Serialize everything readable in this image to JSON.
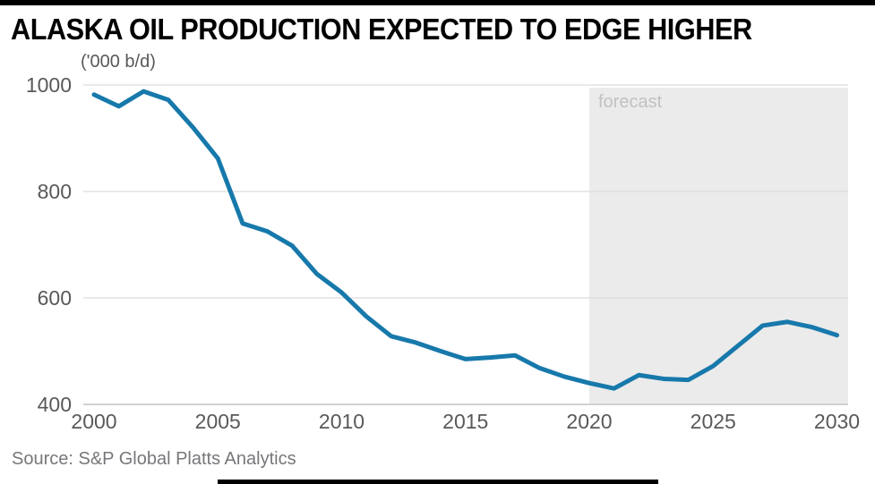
{
  "title": "ALASKA OIL PRODUCTION EXPECTED TO EDGE HIGHER",
  "source": "Source: S&P Global Platts Analytics",
  "colors": {
    "line": "#1779ab",
    "forecast_fill": "#ebebeb",
    "grid": "#dcdcdc",
    "axis": "#c2c2c2",
    "tick_text": "#58595b",
    "forecast_text": "#bfc1c3",
    "rule": "#000000"
  },
  "chart_data": {
    "type": "line",
    "title": "ALASKA OIL PRODUCTION EXPECTED TO EDGE HIGHER",
    "unit_label": "('000 b/d)",
    "forecast_label": "forecast",
    "forecast_start_x": 2020,
    "x": [
      2000,
      2001,
      2002,
      2003,
      2004,
      2005,
      2006,
      2007,
      2008,
      2009,
      2010,
      2011,
      2012,
      2013,
      2014,
      2015,
      2016,
      2017,
      2018,
      2019,
      2020,
      2021,
      2022,
      2023,
      2024,
      2025,
      2026,
      2027,
      2028,
      2029,
      2030
    ],
    "values": [
      982,
      960,
      988,
      972,
      920,
      862,
      740,
      725,
      698,
      645,
      610,
      565,
      528,
      516,
      500,
      485,
      488,
      492,
      468,
      452,
      440,
      430,
      455,
      448,
      446,
      472,
      510,
      548,
      555,
      545,
      530
    ],
    "x_ticks": [
      2000,
      2005,
      2010,
      2015,
      2020,
      2025,
      2030
    ],
    "y_ticks": [
      400,
      600,
      800,
      1000
    ],
    "ylim": [
      400,
      1000
    ],
    "xlabel": "",
    "ylabel": "('000 b/d)",
    "grid": true,
    "legend": "none",
    "forecast_band": true
  }
}
